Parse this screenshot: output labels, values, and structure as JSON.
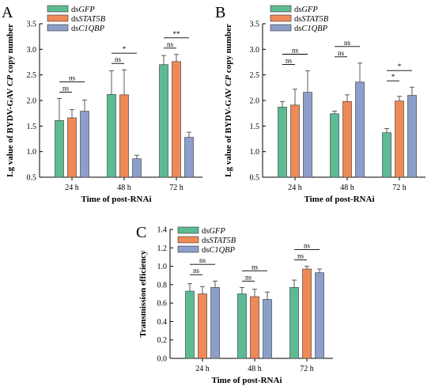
{
  "figure": {
    "legend": [
      {
        "prefix": "ds",
        "italic": "GFP",
        "color": "#5dbb94"
      },
      {
        "prefix": "ds",
        "italic": "STAT5B",
        "color": "#ef8a57"
      },
      {
        "prefix": "ds",
        "italic": "C1QBP",
        "color": "#8c9fcb"
      }
    ],
    "common_xlabel": "Time of post-RNAi"
  },
  "chart_data": [
    {
      "panel": "A",
      "type": "bar",
      "categories": [
        "24 h",
        "48 h",
        "72 h"
      ],
      "series": [
        {
          "name": "dsGFP",
          "values": [
            1.61,
            2.12,
            2.7
          ],
          "errors": [
            0.43,
            0.46,
            0.18
          ]
        },
        {
          "name": "dsSTAT5B",
          "values": [
            1.66,
            2.11,
            2.76
          ],
          "errors": [
            0.16,
            0.49,
            0.14
          ]
        },
        {
          "name": "dsC1QBP",
          "values": [
            1.79,
            0.86,
            1.28
          ],
          "errors": [
            0.22,
            0.07,
            0.1
          ]
        }
      ],
      "ylabel_prefix": "Lg value of BYDV-GAV ",
      "ylabel_italic": "CP",
      "ylabel_suffix": " copy number",
      "xlabel": "Time of post-RNAi",
      "ylim": [
        0.5,
        3.5
      ],
      "yticks": [
        "0.5",
        "1.0",
        "1.5",
        "2.0",
        "2.5",
        "3.0",
        "3.5"
      ],
      "significance": [
        {
          "category": 0,
          "from": 0,
          "to": 1,
          "label": "ns",
          "level": 0
        },
        {
          "category": 0,
          "from": 0,
          "to": 2,
          "label": "ns",
          "level": 1
        },
        {
          "category": 1,
          "from": 0,
          "to": 1,
          "label": "ns",
          "level": 0
        },
        {
          "category": 1,
          "from": 0,
          "to": 2,
          "label": "*",
          "level": 1
        },
        {
          "category": 2,
          "from": 0,
          "to": 1,
          "label": "ns",
          "level": 0
        },
        {
          "category": 2,
          "from": 0,
          "to": 2,
          "label": "**",
          "level": 1
        }
      ]
    },
    {
      "panel": "B",
      "type": "bar",
      "categories": [
        "24 h",
        "48 h",
        "72 h"
      ],
      "series": [
        {
          "name": "dsGFP",
          "values": [
            1.87,
            1.74,
            1.37
          ],
          "errors": [
            0.11,
            0.05,
            0.08
          ]
        },
        {
          "name": "dsSTAT5B",
          "values": [
            1.91,
            1.98,
            1.99
          ],
          "errors": [
            0.31,
            0.13,
            0.09
          ]
        },
        {
          "name": "dsC1QBP",
          "values": [
            2.16,
            2.36,
            2.1
          ],
          "errors": [
            0.42,
            0.37,
            0.16
          ]
        }
      ],
      "ylabel_prefix": "Lg value of BYDV-GAV ",
      "ylabel_italic": "CP",
      "ylabel_suffix": " copy number",
      "xlabel": "Time of post-RNAi",
      "ylim": [
        0.5,
        3.5
      ],
      "yticks": [
        "0.5",
        "1.0",
        "1.5",
        "2.0",
        "2.5",
        "3.0",
        "3.5"
      ],
      "significance": [
        {
          "category": 0,
          "from": 0,
          "to": 1,
          "label": "ns",
          "level": 0
        },
        {
          "category": 0,
          "from": 0,
          "to": 2,
          "label": "ns",
          "level": 1
        },
        {
          "category": 1,
          "from": 0,
          "to": 1,
          "label": "ns",
          "level": 0
        },
        {
          "category": 1,
          "from": 0,
          "to": 2,
          "label": "ns",
          "level": 1
        },
        {
          "category": 2,
          "from": 0,
          "to": 1,
          "label": "*",
          "level": 0
        },
        {
          "category": 2,
          "from": 0,
          "to": 2,
          "label": "*",
          "level": 1
        }
      ]
    },
    {
      "panel": "C",
      "type": "bar",
      "categories": [
        "24 h",
        "48 h",
        "72 h"
      ],
      "series": [
        {
          "name": "dsGFP",
          "values": [
            0.73,
            0.7,
            0.77
          ],
          "errors": [
            0.08,
            0.07,
            0.08
          ]
        },
        {
          "name": "dsSTAT5B",
          "values": [
            0.7,
            0.67,
            0.97
          ],
          "errors": [
            0.08,
            0.08,
            0.03
          ]
        },
        {
          "name": "dsC1QBP",
          "values": [
            0.77,
            0.64,
            0.93
          ],
          "errors": [
            0.07,
            0.08,
            0.04
          ]
        }
      ],
      "ylabel_prefix": "Transmission efficiency",
      "ylabel_italic": "",
      "ylabel_suffix": "",
      "xlabel": "Time of post-RNAi",
      "ylim": [
        0.0,
        1.4
      ],
      "yticks": [
        "0.0",
        "0.2",
        "0.4",
        "0.6",
        "0.8",
        "1.0",
        "1.2",
        "1.4"
      ],
      "significance": [
        {
          "category": 0,
          "from": 0,
          "to": 1,
          "label": "ns",
          "level": 0
        },
        {
          "category": 0,
          "from": 0,
          "to": 2,
          "label": "ns",
          "level": 1
        },
        {
          "category": 1,
          "from": 0,
          "to": 1,
          "label": "ns",
          "level": 0
        },
        {
          "category": 1,
          "from": 0,
          "to": 2,
          "label": "ns",
          "level": 1
        },
        {
          "category": 2,
          "from": 0,
          "to": 1,
          "label": "ns",
          "level": 0
        },
        {
          "category": 2,
          "from": 0,
          "to": 2,
          "label": "ns",
          "level": 1
        }
      ]
    }
  ]
}
